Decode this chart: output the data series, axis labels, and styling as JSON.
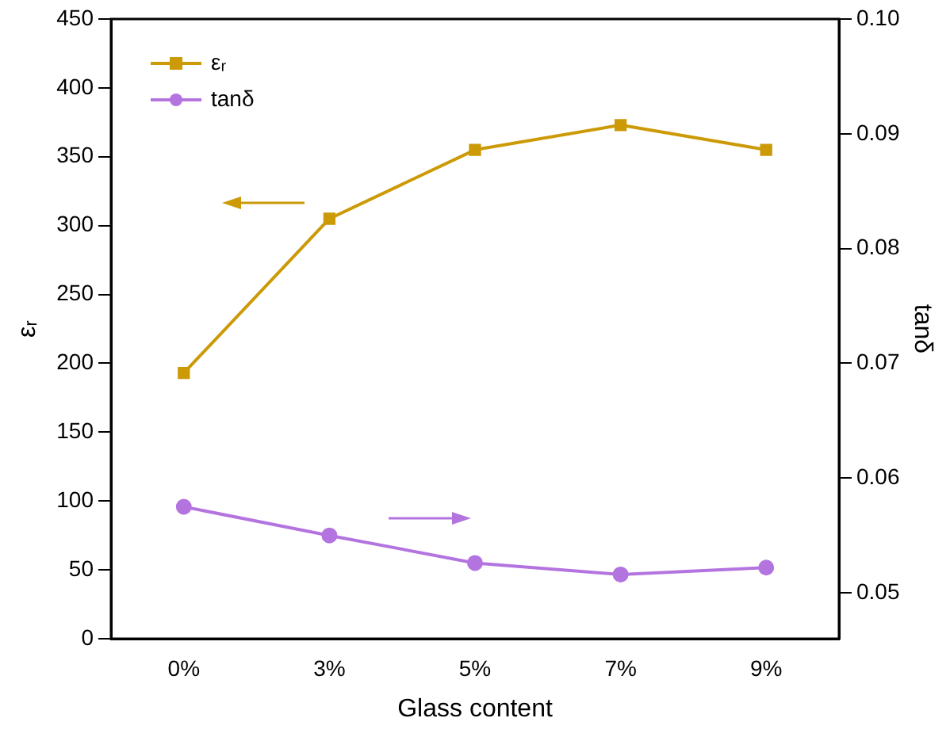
{
  "chart_data": {
    "type": "line",
    "xlabel": "Glass content",
    "ylabel": "εᵣ",
    "y2label": "tanδ",
    "categories": [
      "0%",
      "3%",
      "5%",
      "7%",
      "9%"
    ],
    "series": [
      {
        "name": "εᵣ",
        "color": "#cc9a06",
        "values": [
          193,
          305,
          355,
          373,
          355
        ],
        "marker": "square"
      },
      {
        "name": "tanδ",
        "color": "#b474e0",
        "values": [
          0.0575,
          0.055,
          0.0526,
          0.0516,
          0.0522
        ],
        "axis": "y2",
        "marker": "circle"
      }
    ],
    "ylim": [
      0,
      450
    ],
    "yticks": [
      0,
      50,
      100,
      150,
      200,
      250,
      300,
      350,
      400,
      450
    ],
    "y2lim": [
      0.046,
      0.1
    ],
    "y2ticks": [
      0.05,
      0.06,
      0.07,
      0.08,
      0.09,
      {
        "value": 0.1,
        "label": "0.10"
      }
    ],
    "grid": false,
    "legend": "top left",
    "line_style": "solid"
  }
}
